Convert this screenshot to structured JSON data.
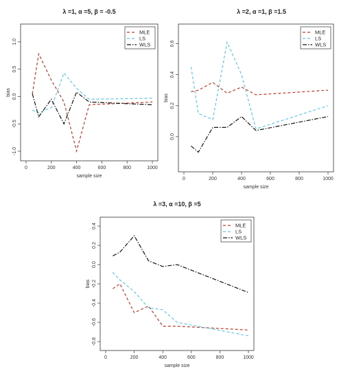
{
  "chart_data": [
    {
      "type": "line",
      "title": "λ =1, α =5, β = -0.5",
      "xlabel": "sample size",
      "ylabel": "bias",
      "xlim": [
        0,
        1000
      ],
      "ylim": [
        -1.1,
        1.25
      ],
      "xticks": [
        0,
        200,
        400,
        600,
        800,
        1000
      ],
      "yticks": [
        -1.0,
        -0.5,
        0.0,
        0.5,
        1.0
      ],
      "ytick_labels": [
        "-1.0",
        "-0.5",
        "0.0",
        "0.5",
        "1.0"
      ],
      "legend_position": "top-right",
      "series": [
        {
          "name": "MLE",
          "color": "#c0392b",
          "dash": "dashed",
          "x": [
            50,
            100,
            200,
            300,
            400,
            500,
            1000
          ],
          "y": [
            0.05,
            0.78,
            0.3,
            -0.1,
            -1.0,
            -0.15,
            -0.1
          ]
        },
        {
          "name": "LS",
          "color": "#5bc8e8",
          "dash": "dashed",
          "x": [
            50,
            100,
            200,
            300,
            400,
            500,
            1000
          ],
          "y": [
            -0.25,
            -0.3,
            -0.2,
            0.43,
            0.15,
            -0.05,
            -0.03
          ]
        },
        {
          "name": "WLS",
          "color": "#111111",
          "dash": "dotdash",
          "x": [
            50,
            100,
            200,
            300,
            400,
            500,
            1000
          ],
          "y": [
            0.05,
            -0.37,
            -0.05,
            -0.5,
            0.08,
            -0.1,
            -0.15
          ]
        }
      ]
    },
    {
      "type": "line",
      "title": "λ =2, α =1, β =1.5",
      "xlabel": "sample size",
      "ylabel": "bias",
      "xlim": [
        0,
        1000
      ],
      "ylim": [
        -0.2,
        0.7
      ],
      "xticks": [
        0,
        200,
        400,
        600,
        800,
        1000
      ],
      "yticks": [
        0.0,
        0.2,
        0.4,
        0.6
      ],
      "ytick_labels": [
        "0.0",
        "0.2",
        "0.4",
        "0.6"
      ],
      "legend_position": "top-right",
      "series": [
        {
          "name": "MLE",
          "color": "#c0392b",
          "dash": "dashed",
          "x": [
            50,
            100,
            200,
            300,
            400,
            500,
            1000
          ],
          "y": [
            0.29,
            0.3,
            0.35,
            0.28,
            0.32,
            0.27,
            0.3
          ]
        },
        {
          "name": "LS",
          "color": "#5bc8e8",
          "dash": "dashed",
          "x": [
            50,
            100,
            200,
            300,
            400,
            500,
            1000
          ],
          "y": [
            0.45,
            0.15,
            0.11,
            0.61,
            0.4,
            0.05,
            0.2
          ]
        },
        {
          "name": "WLS",
          "color": "#111111",
          "dash": "dotdash",
          "x": [
            50,
            100,
            200,
            300,
            400,
            500,
            1000
          ],
          "y": [
            -0.06,
            -0.1,
            0.06,
            0.06,
            0.13,
            0.04,
            0.13
          ]
        }
      ]
    },
    {
      "type": "line",
      "title": "λ =3, α =10, β =5",
      "xlabel": "sample size",
      "ylabel": "bias",
      "xlim": [
        0,
        1000
      ],
      "ylim": [
        -0.85,
        0.45
      ],
      "xticks": [
        0,
        200,
        400,
        600,
        800,
        1000
      ],
      "yticks": [
        -0.8,
        -0.6,
        -0.4,
        -0.2,
        0.0,
        0.2,
        0.4
      ],
      "ytick_labels": [
        "-0.8",
        "-0.6",
        "-0.4",
        "-0.2",
        "0.0",
        "0.2",
        "0.4"
      ],
      "legend_position": "top-right",
      "series": [
        {
          "name": "MLE",
          "color": "#c0392b",
          "dash": "dashed",
          "x": [
            50,
            100,
            200,
            300,
            400,
            500,
            1000
          ],
          "y": [
            -0.25,
            -0.2,
            -0.5,
            -0.43,
            -0.64,
            -0.64,
            -0.68
          ]
        },
        {
          "name": "LS",
          "color": "#5bc8e8",
          "dash": "dashed",
          "x": [
            50,
            100,
            200,
            300,
            400,
            500,
            1000
          ],
          "y": [
            -0.08,
            -0.16,
            -0.28,
            -0.45,
            -0.47,
            -0.6,
            -0.74
          ]
        },
        {
          "name": "WLS",
          "color": "#111111",
          "dash": "dotdash",
          "x": [
            50,
            100,
            200,
            300,
            400,
            500,
            1000
          ],
          "y": [
            0.09,
            0.13,
            0.3,
            0.04,
            -0.02,
            0.0,
            -0.29
          ]
        }
      ]
    }
  ]
}
